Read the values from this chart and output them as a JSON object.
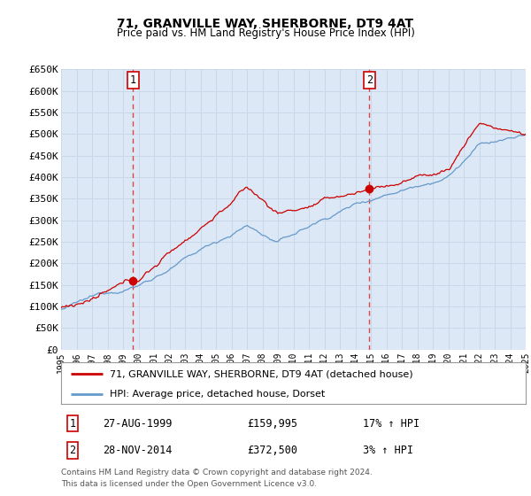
{
  "title": "71, GRANVILLE WAY, SHERBORNE, DT9 4AT",
  "subtitle": "Price paid vs. HM Land Registry's House Price Index (HPI)",
  "legend_line1": "71, GRANVILLE WAY, SHERBORNE, DT9 4AT (detached house)",
  "legend_line2": "HPI: Average price, detached house, Dorset",
  "footnote1": "Contains HM Land Registry data © Crown copyright and database right 2024.",
  "footnote2": "This data is licensed under the Open Government Licence v3.0.",
  "transaction1_date": "27-AUG-1999",
  "transaction1_price": "£159,995",
  "transaction1_hpi": "17% ↑ HPI",
  "transaction2_date": "28-NOV-2014",
  "transaction2_price": "£372,500",
  "transaction2_hpi": "3% ↑ HPI",
  "sale1_x": 1999.65,
  "sale1_y": 159995,
  "sale2_x": 2014.91,
  "sale2_y": 372500,
  "vline1_x": 1999.65,
  "vline2_x": 2014.91,
  "xlim": [
    1995,
    2025
  ],
  "ylim": [
    0,
    650000
  ],
  "yticks": [
    0,
    50000,
    100000,
    150000,
    200000,
    250000,
    300000,
    350000,
    400000,
    450000,
    500000,
    550000,
    600000,
    650000
  ],
  "xticks": [
    1995,
    1996,
    1997,
    1998,
    1999,
    2000,
    2001,
    2002,
    2003,
    2004,
    2005,
    2006,
    2007,
    2008,
    2009,
    2010,
    2011,
    2012,
    2013,
    2014,
    2015,
    2016,
    2017,
    2018,
    2019,
    2020,
    2021,
    2022,
    2023,
    2024,
    2025
  ],
  "red_color": "#cc0000",
  "blue_color": "#6699cc",
  "background_plot": "#dce8f5",
  "grid_color": "#c8d8e8",
  "vline_color": "#dd4444",
  "box_color": "#cc0000"
}
